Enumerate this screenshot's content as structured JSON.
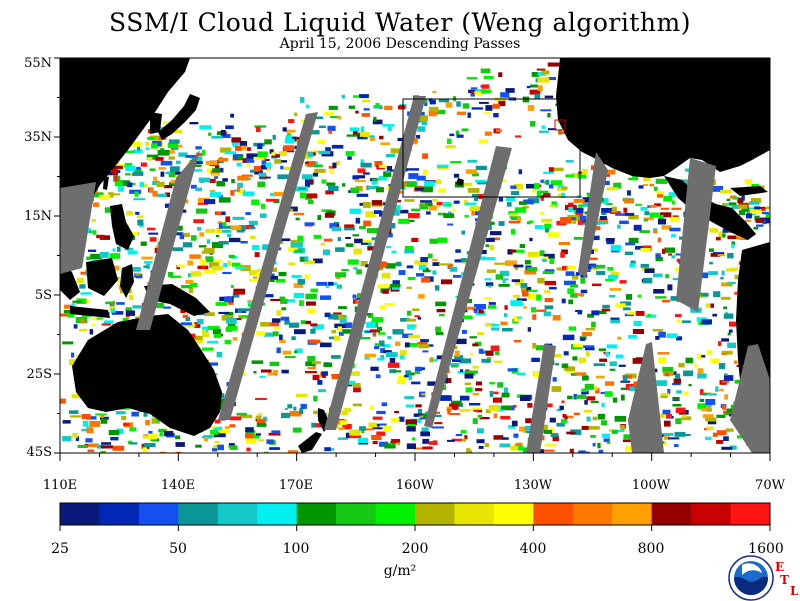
{
  "title": "SSM/I Cloud Liquid Water (Weng algorithm)",
  "subtitle": "April 15, 2006  Descending Passes",
  "lat_labels": [
    "55N",
    "35N",
    "15N",
    "5S",
    "25S",
    "45S"
  ],
  "lon_labels": [
    "110E",
    "140E",
    "170E",
    "160W",
    "130W",
    "100W",
    "70W"
  ],
  "colorbar": {
    "colors": [
      "#0a1a7a",
      "#0028b4",
      "#1450f0",
      "#0a9696",
      "#14c8c8",
      "#00f0f0",
      "#009600",
      "#14c814",
      "#00f000",
      "#b4b400",
      "#e6e600",
      "#ffff00",
      "#ff5000",
      "#ff7800",
      "#ffa000",
      "#960000",
      "#c80000",
      "#ff1414"
    ],
    "tick_labels": [
      "25",
      "50",
      "100",
      "200",
      "400",
      "800",
      "1600"
    ],
    "units": "g/m²"
  },
  "logo": {
    "name": "NOAA",
    "lab_letters": [
      "E",
      "T",
      "L"
    ]
  },
  "colors": {
    "land": "#000000",
    "no_data": "#6e6e6e",
    "background": "#ffffff"
  }
}
